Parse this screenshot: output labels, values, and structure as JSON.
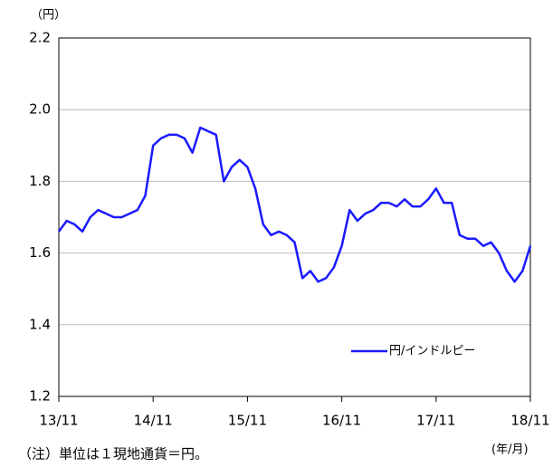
{
  "chart_data": {
    "type": "line",
    "y_unit_label": "（円）",
    "x_unit_label": "(年/月)",
    "note": "（注）単位は１現地通貨＝円。",
    "x": [
      "2013-11",
      "2013-12",
      "2014-01",
      "2014-02",
      "2014-03",
      "2014-04",
      "2014-05",
      "2014-06",
      "2014-07",
      "2014-08",
      "2014-09",
      "2014-10",
      "2014-11",
      "2014-12",
      "2015-01",
      "2015-02",
      "2015-03",
      "2015-04",
      "2015-05",
      "2015-06",
      "2015-07",
      "2015-08",
      "2015-09",
      "2015-10",
      "2015-11",
      "2015-12",
      "2016-01",
      "2016-02",
      "2016-03",
      "2016-04",
      "2016-05",
      "2016-06",
      "2016-07",
      "2016-08",
      "2016-09",
      "2016-10",
      "2016-11",
      "2016-12",
      "2017-01",
      "2017-02",
      "2017-03",
      "2017-04",
      "2017-05",
      "2017-06",
      "2017-07",
      "2017-08",
      "2017-09",
      "2017-10",
      "2017-11",
      "2017-12",
      "2018-01",
      "2018-02",
      "2018-03",
      "2018-04",
      "2018-05",
      "2018-06",
      "2018-07",
      "2018-08",
      "2018-09",
      "2018-10",
      "2018-11"
    ],
    "series": [
      {
        "name": "円/インドルピー",
        "color": "#1a1aff",
        "values": [
          1.66,
          1.69,
          1.68,
          1.66,
          1.7,
          1.72,
          1.71,
          1.7,
          1.7,
          1.71,
          1.72,
          1.76,
          1.9,
          1.92,
          1.93,
          1.93,
          1.92,
          1.88,
          1.95,
          1.94,
          1.93,
          1.8,
          1.84,
          1.86,
          1.84,
          1.78,
          1.68,
          1.65,
          1.66,
          1.65,
          1.63,
          1.53,
          1.55,
          1.52,
          1.53,
          1.56,
          1.62,
          1.72,
          1.69,
          1.71,
          1.72,
          1.74,
          1.74,
          1.73,
          1.75,
          1.73,
          1.73,
          1.75,
          1.78,
          1.74,
          1.74,
          1.65,
          1.64,
          1.64,
          1.62,
          1.63,
          1.6,
          1.55,
          1.52,
          1.55,
          1.62
        ]
      }
    ],
    "xlim": [
      "2013-11",
      "2018-11"
    ],
    "xticks": [
      {
        "value": "2013-11",
        "label": "13/11"
      },
      {
        "value": "2014-11",
        "label": "14/11"
      },
      {
        "value": "2015-11",
        "label": "15/11"
      },
      {
        "value": "2016-11",
        "label": "16/11"
      },
      {
        "value": "2017-11",
        "label": "17/11"
      },
      {
        "value": "2018-11",
        "label": "18/11"
      }
    ],
    "ylim": [
      1.2,
      2.2
    ],
    "yticks": [
      1.2,
      1.4,
      1.6,
      1.8,
      {
        "value": 2,
        "label": "2.0"
      },
      2.2
    ],
    "grid": true,
    "legend": "lower right"
  }
}
